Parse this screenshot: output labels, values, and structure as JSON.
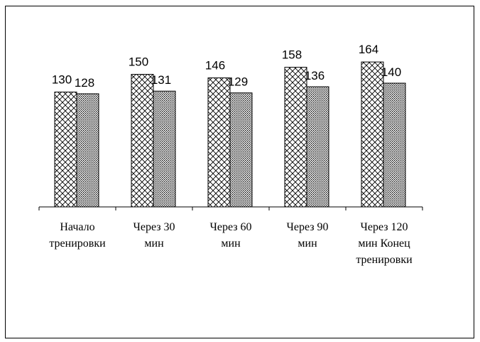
{
  "chart_data": {
    "type": "bar",
    "categories": [
      [
        "Начало",
        "тренировки"
      ],
      [
        "Через 30",
        "мин"
      ],
      [
        "Через 60",
        "мин"
      ],
      [
        "Через 90",
        "мин"
      ],
      [
        "Через 120",
        "мин  Конец",
        "тренировки"
      ]
    ],
    "series": [
      {
        "values": [
          130,
          150,
          146,
          158,
          164
        ],
        "pattern": "crosshatch"
      },
      {
        "values": [
          128,
          131,
          129,
          136,
          140
        ],
        "pattern": "dense-dots"
      }
    ],
    "ylim": [
      0,
      180
    ],
    "title": "",
    "xlabel": "",
    "ylabel": "",
    "legend": "none",
    "grid": false,
    "colors": {
      "stroke": "#000000",
      "background": "#ffffff"
    }
  }
}
